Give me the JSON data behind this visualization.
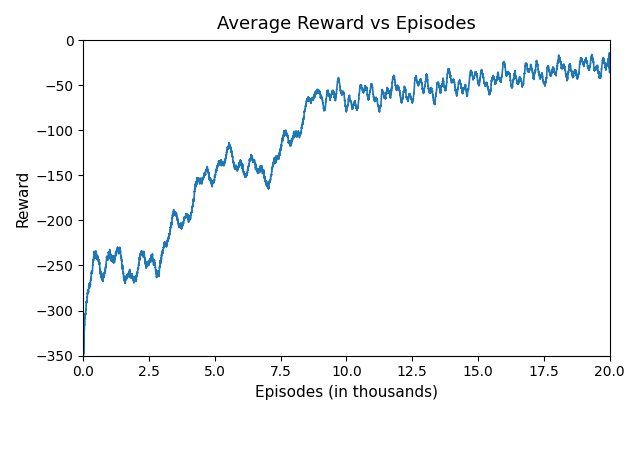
{
  "title": "Average Reward vs Episodes",
  "xlabel": "Episodes (in thousands)",
  "ylabel": "Reward",
  "xlim": [
    0,
    20
  ],
  "ylim": [
    -350,
    0
  ],
  "xticks": [
    0.0,
    2.5,
    5.0,
    7.5,
    10.0,
    12.5,
    15.0,
    17.5,
    20.0
  ],
  "xtick_labels": [
    "0.0",
    "2.5",
    "5.0",
    "7.5",
    "10.0",
    "12.5",
    "15.0",
    "17.5",
    "20.0"
  ],
  "yticks": [
    0,
    -50,
    -100,
    -150,
    -200,
    -250,
    -300,
    -350
  ],
  "line_color": "#1f77b4",
  "line_width": 1.2,
  "background_color": "#ffffff",
  "title_fontsize": 13,
  "label_fontsize": 11,
  "tick_fontsize": 10,
  "seed": 42,
  "n_points": 20000,
  "figsize": [
    6.4,
    4.51
  ],
  "dpi": 100
}
